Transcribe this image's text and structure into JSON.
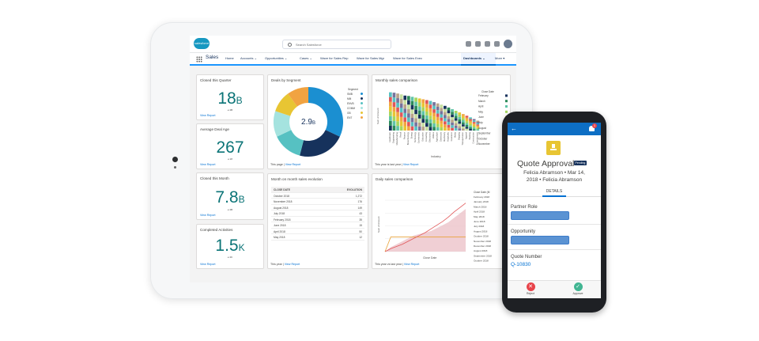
{
  "header": {
    "logo_text": "salesforce",
    "search_placeholder": "Search Salesforce"
  },
  "nav": {
    "app_name": "Sales",
    "items": [
      "Home",
      "Accounts ⌄",
      "Opportunities ⌄",
      "Cases ⌄",
      "Wave for Sales Rep",
      "Wave for Sales Mgr",
      "Wave for Sales Exec",
      "Dashboards ⌄",
      "More ▾"
    ]
  },
  "cards": {
    "closed_quarter": {
      "title": "Closed this Quarter",
      "value": "18",
      "unit": "B",
      "sub": "≥ 4B",
      "link": "View Report"
    },
    "deal_age": {
      "title": "Average Deal Age",
      "value": "267",
      "unit": "",
      "sub": "≥ 18",
      "link": "View Report"
    },
    "closed_month": {
      "title": "Closed this Month",
      "value": "7.8",
      "unit": "B",
      "sub": "≥ 4B",
      "link": "View Report"
    },
    "activities": {
      "title": "Completed Activities",
      "value": "1.5",
      "unit": "K",
      "sub": "≥ 4K",
      "link": "View Report"
    }
  },
  "donut": {
    "title": "Deals by Segment",
    "center_value": "2.9",
    "center_unit": "B",
    "legend_title": "Segment",
    "footer": "This page |",
    "footer_link": "View Report"
  },
  "monthly": {
    "title": "Monthly sales comparison",
    "legend_title": "Close Date",
    "footer": "This year is last year |",
    "footer_link": "View Report",
    "xlabel": "Industry",
    "ylabel": "Sum of Amount"
  },
  "mom": {
    "title": "Month on month sales evolution",
    "col1": "CLOSE DATE",
    "col2": "EVOLUTION",
    "footer": "This year |",
    "footer_link": "View Report"
  },
  "daily": {
    "title": "Daily sales comparison",
    "legend_title": "Close Date (M",
    "footer": "This year vs last year |",
    "footer_link": "View Report",
    "xlabel": "Close Date",
    "ylabel": "Sum of Amount"
  },
  "phone": {
    "title": "Quote Approval",
    "badge": "Pending",
    "sub1": "Felicia Abramson • Mar 14,",
    "sub2": "2018 • Felicia Abramson",
    "tab": "DETAILS",
    "field1": "Partner Role",
    "field2": "Opportunity",
    "field3": "Quote Number",
    "field3_value": "Q-10830",
    "reject": "Reject",
    "approve": "Approve",
    "notif_count": "1"
  },
  "chart_data": [
    {
      "type": "pie",
      "title": "Deals by Segment",
      "legend_title": "Segment",
      "categories": [
        "SMB",
        "MM",
        "ENVB",
        "COMM",
        "GB",
        "ENT"
      ],
      "values": [
        32,
        22,
        14,
        12,
        10,
        10
      ],
      "colors": [
        "#1b8fd1",
        "#16325c",
        "#56c1c2",
        "#a5e3df",
        "#e8c533",
        "#f1a341"
      ]
    },
    {
      "type": "bar",
      "title": "Monthly sales comparison",
      "xlabel": "Industry",
      "ylabel": "Sum of Amount",
      "legend_title": "Close Date",
      "legend": [
        "February",
        "March",
        "April",
        "May",
        "June",
        "July",
        "August",
        "September",
        "October",
        "November",
        "December"
      ],
      "categories": [
        "Healthcare",
        "Engineering",
        "Manufacturing",
        "Retail",
        "Finance",
        "Biotechnology",
        "Energy",
        "Technology",
        "Government",
        "Education",
        "Consulting",
        "Electronics",
        "Utilities",
        "Agriculture",
        "Chemicals",
        "Machinery",
        "Hospitality",
        "Insurance",
        "Media",
        "Shipping",
        "Transportation",
        "Apparel",
        "Banking",
        "Construction",
        "Entertainment"
      ],
      "values": [
        93,
        92,
        90,
        88,
        85,
        84,
        82,
        80,
        78,
        76,
        74,
        72,
        69,
        66,
        63,
        60,
        56,
        52,
        48,
        44,
        40,
        36,
        32,
        28,
        24
      ]
    },
    {
      "type": "table",
      "title": "Month on month sales evolution",
      "columns": [
        "CLOSE DATE",
        "EVOLUTION"
      ],
      "rows": [
        [
          "October 2018",
          "1,272"
        ],
        [
          "November 2018",
          "176"
        ],
        [
          "August 2018",
          "149"
        ],
        [
          "July 2018",
          "43"
        ],
        [
          "February 2018",
          "35"
        ],
        [
          "June 2018",
          "15"
        ],
        [
          "April 2018",
          "50"
        ],
        [
          "May 2018",
          "12"
        ]
      ]
    },
    {
      "type": "area",
      "title": "Daily sales comparison",
      "xlabel": "Close Date",
      "ylabel": "Sum of Amount",
      "legend_title": "Close Date (M",
      "legend": [
        "February 2018",
        "January 2018",
        "March 2018",
        "April 2018",
        "May 2018",
        "June 2018",
        "July 2018",
        "August 2018",
        "October 2018",
        "November 2018",
        "December 2018",
        "August 2018",
        "September 2018",
        "October 2018"
      ],
      "series": [
        {
          "values": [
            0,
            4,
            7,
            10,
            14,
            18,
            22,
            26,
            31,
            36,
            41,
            47,
            54,
            60,
            66
          ]
        },
        {
          "values": [
            0,
            6,
            10,
            14,
            18,
            22,
            24,
            26,
            28,
            32,
            36,
            40,
            46,
            52,
            58
          ]
        },
        {
          "values": [
            0,
            20,
            20,
            20,
            20,
            20,
            20,
            20,
            20,
            20,
            20,
            20,
            20,
            20,
            20
          ]
        }
      ],
      "colors": [
        "#e15759",
        "#ecc3c9",
        "#e8a33b"
      ]
    }
  ]
}
